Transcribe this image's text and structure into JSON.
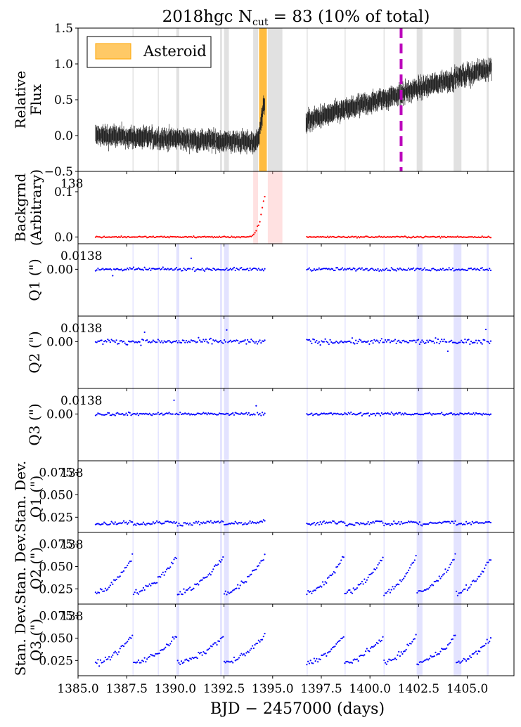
{
  "title_main": "2018hgc  N",
  "title_sub": "cut",
  "title_rest": " = 83 (10% of total)",
  "xlabel": "BJD − 2457000 (days)",
  "legend_label": "Asteroid",
  "colors": {
    "flux": "#222222",
    "background": "#ff0000",
    "centroid": "#0000ff",
    "asteroid": "#ffa500",
    "marker": "#bb00bb",
    "gray_band": "#bdbdbd",
    "blue_band": "#9999ff",
    "red_band": "#ffb3b3"
  },
  "chart_data": {
    "type": "scatter",
    "x_range": [
      1385,
      1407.4
    ],
    "x_ticks": [
      1385.0,
      1387.5,
      1390.0,
      1392.5,
      1395.0,
      1397.5,
      1400.0,
      1402.5,
      1405.0
    ],
    "x_tick_labels": [
      "1385.0",
      "1387.5",
      "1390.0",
      "1392.5",
      "1395.0",
      "1397.5",
      "1400.0",
      "1402.5",
      "1405.0"
    ],
    "x_start": 1385.9,
    "gap": [
      1394.6,
      1396.7
    ],
    "asteroid_band": [
      1394.3,
      1394.7
    ],
    "marker_x": 1401.6,
    "gray_bands": [
      [
        1387.8,
        1387.85
      ],
      [
        1389.1,
        1389.15
      ],
      [
        1390.05,
        1390.2
      ],
      [
        1392.3,
        1392.4
      ],
      [
        1392.5,
        1392.75
      ],
      [
        1394.0,
        1394.25
      ],
      [
        1394.75,
        1395.5
      ],
      [
        1396.75,
        1396.8
      ],
      [
        1398.7,
        1398.75
      ],
      [
        1400.7,
        1400.75
      ],
      [
        1402.4,
        1402.7
      ],
      [
        1404.3,
        1404.7
      ],
      [
        1406.0,
        1406.1
      ]
    ],
    "panels": [
      {
        "key": "flux",
        "ylabel": [
          "Relative",
          "Flux"
        ],
        "ylim": [
          -0.5,
          1.5
        ],
        "yticks": [
          -0.5,
          0.0,
          0.5,
          1.0,
          1.5
        ],
        "ytick_labels": [
          "−0.5",
          "0.0",
          "0.5",
          "1.0",
          "1.5"
        ],
        "offset_text": ""
      },
      {
        "key": "bkg",
        "ylabel": [
          "Backgrnd",
          "(Arbitrary)"
        ],
        "ylim": [
          -0.015,
          0.145
        ],
        "yticks": [
          0.0,
          0.1
        ],
        "ytick_labels": [
          "0.0",
          "0.1"
        ],
        "offset_text": "138"
      },
      {
        "key": "q1",
        "ylabel": [
          "Q1 (\")"
        ],
        "ylim": [
          -0.022,
          0.012
        ],
        "yticks": [
          0.0
        ],
        "ytick_labels": [
          "0.00"
        ],
        "offset_text": "0.0138"
      },
      {
        "key": "q2",
        "ylabel": [
          "Q2 (\")"
        ],
        "ylim": [
          -0.022,
          0.012
        ],
        "yticks": [
          0.0
        ],
        "ytick_labels": [
          "0.00"
        ],
        "offset_text": "0.0138"
      },
      {
        "key": "q3",
        "ylabel": [
          "Q3 (\")"
        ],
        "ylim": [
          -0.022,
          0.012
        ],
        "yticks": [
          0.0
        ],
        "ytick_labels": [
          "0.00"
        ],
        "offset_text": "0.0138"
      },
      {
        "key": "s1",
        "ylabel": [
          "Stan. Dev.",
          "Q1 (\")"
        ],
        "ylim": [
          0.008,
          0.088
        ],
        "yticks": [
          0.025,
          0.05,
          0.075
        ],
        "ytick_labels": [
          "0.025",
          "0.050",
          "0.075"
        ],
        "offset_text": "138"
      },
      {
        "key": "s2",
        "ylabel": [
          "Stan. Dev.",
          "Q2 (\")"
        ],
        "ylim": [
          0.008,
          0.088
        ],
        "yticks": [
          0.025,
          0.05,
          0.075
        ],
        "ytick_labels": [
          "0.025",
          "0.050",
          "0.075"
        ],
        "offset_text": "138"
      },
      {
        "key": "s3",
        "ylabel": [
          "Stan. Dev.",
          "Q3 (\")"
        ],
        "ylim": [
          0.008,
          0.088
        ],
        "yticks": [
          0.025,
          0.05,
          0.075
        ],
        "ytick_labels": [
          "0.025",
          "0.050",
          "0.075"
        ],
        "offset_text": "138"
      }
    ],
    "trends": {
      "flux_start": 0.0,
      "flux_before_gap": -0.1,
      "flux_after_gap": 0.2,
      "flux_end": 0.95,
      "asteroid_peak": 0.55,
      "bkg_level": 0.0,
      "bkg_peak": 0.1,
      "stddev_q1_level": 0.017,
      "stddev_q2_orbit_start": 0.02,
      "stddev_q2_orbit_end": 0.06,
      "stddev_q3_orbit_start": 0.022,
      "stddev_q3_orbit_end": 0.055
    }
  }
}
